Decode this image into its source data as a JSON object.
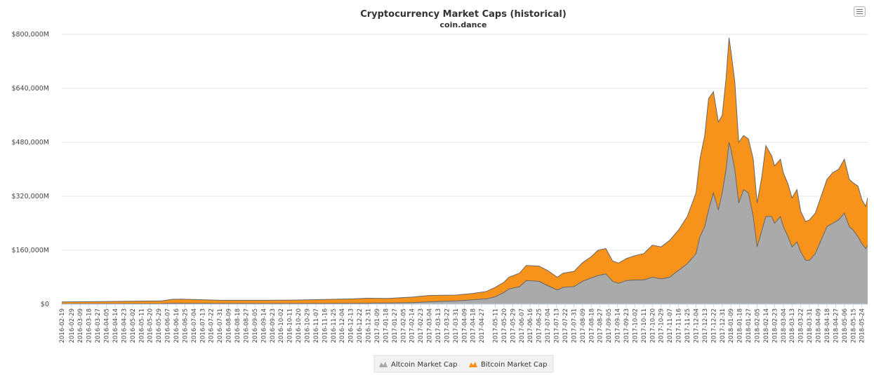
{
  "chart_data": {
    "type": "area",
    "stacked": true,
    "title": "Cryptocurrency Market Caps (historical)",
    "subtitle": "coin.dance",
    "xlabel": "",
    "ylabel": "",
    "ylim": [
      0,
      800000
    ],
    "y_ticks": [
      "$0",
      "$160,000M",
      "$320,000M",
      "$480,000M",
      "$640,000M",
      "$800,000M"
    ],
    "y_tick_values": [
      0,
      160000,
      320000,
      480000,
      640000,
      800000
    ],
    "grid": true,
    "legend_position": "bottom-center",
    "x_start": "2016-02-19",
    "x_end": "2018-05-30",
    "x_ticks": [
      "2016-02-19",
      "2016-02-29",
      "2016-03-09",
      "2016-03-18",
      "2016-03-27",
      "2016-04-05",
      "2016-04-14",
      "2016-04-23",
      "2016-05-02",
      "2016-05-11",
      "2016-05-20",
      "2016-05-29",
      "2016-06-07",
      "2016-06-16",
      "2016-06-25",
      "2016-07-04",
      "2016-07-13",
      "2016-07-22",
      "2016-07-31",
      "2016-08-09",
      "2016-08-18",
      "2016-08-27",
      "2016-09-05",
      "2016-09-14",
      "2016-09-23",
      "2016-10-02",
      "2016-10-11",
      "2016-10-20",
      "2016-10-29",
      "2016-11-07",
      "2016-11-16",
      "2016-11-25",
      "2016-12-04",
      "2016-12-13",
      "2016-12-22",
      "2016-12-31",
      "2017-01-09",
      "2017-01-18",
      "2017-01-27",
      "2017-02-05",
      "2017-02-14",
      "2017-02-23",
      "2017-03-04",
      "2017-03-13",
      "2017-03-22",
      "2017-03-31",
      "2017-04-09",
      "2017-04-18",
      "2017-04-27",
      "2017-05-11",
      "2017-05-20",
      "2017-05-29",
      "2017-06-07",
      "2017-06-16",
      "2017-06-25",
      "2017-07-04",
      "2017-07-13",
      "2017-07-22",
      "2017-07-31",
      "2017-08-09",
      "2017-08-18",
      "2017-08-27",
      "2017-09-05",
      "2017-09-14",
      "2017-09-23",
      "2017-10-02",
      "2017-10-11",
      "2017-10-20",
      "2017-10-29",
      "2017-11-07",
      "2017-11-16",
      "2017-11-25",
      "2017-12-04",
      "2017-12-13",
      "2017-12-22",
      "2017-12-31",
      "2018-01-09",
      "2018-01-18",
      "2018-01-27",
      "2018-02-05",
      "2018-02-14",
      "2018-02-23",
      "2018-03-04",
      "2018-03-13",
      "2018-03-22",
      "2018-03-31",
      "2018-04-09",
      "2018-04-18",
      "2018-04-27",
      "2018-05-06",
      "2018-05-15",
      "2018-05-24"
    ],
    "dates": [
      "2016-02-19",
      "2016-04-01",
      "2016-06-01",
      "2016-06-12",
      "2016-06-20",
      "2016-08-01",
      "2016-09-10",
      "2016-10-15",
      "2016-11-15",
      "2016-12-15",
      "2016-12-31",
      "2017-01-05",
      "2017-01-20",
      "2017-02-14",
      "2017-03-04",
      "2017-03-31",
      "2017-04-18",
      "2017-05-02",
      "2017-05-11",
      "2017-05-20",
      "2017-05-25",
      "2017-06-05",
      "2017-06-12",
      "2017-06-25",
      "2017-07-04",
      "2017-07-14",
      "2017-07-20",
      "2017-07-31",
      "2017-08-09",
      "2017-08-18",
      "2017-08-25",
      "2017-09-02",
      "2017-09-09",
      "2017-09-15",
      "2017-09-23",
      "2017-10-02",
      "2017-10-11",
      "2017-10-20",
      "2017-10-29",
      "2017-11-07",
      "2017-11-12",
      "2017-11-16",
      "2017-11-25",
      "2017-12-04",
      "2017-12-08",
      "2017-12-13",
      "2017-12-17",
      "2017-12-22",
      "2017-12-27",
      "2017-12-31",
      "2018-01-04",
      "2018-01-07",
      "2018-01-09",
      "2018-01-13",
      "2018-01-17",
      "2018-01-22",
      "2018-01-27",
      "2018-02-01",
      "2018-02-05",
      "2018-02-10",
      "2018-02-14",
      "2018-02-20",
      "2018-02-23",
      "2018-03-01",
      "2018-03-04",
      "2018-03-09",
      "2018-03-13",
      "2018-03-18",
      "2018-03-22",
      "2018-03-27",
      "2018-03-31",
      "2018-04-06",
      "2018-04-12",
      "2018-04-18",
      "2018-04-24",
      "2018-04-30",
      "2018-05-06",
      "2018-05-11",
      "2018-05-15",
      "2018-05-20",
      "2018-05-24",
      "2018-05-28",
      "2018-05-30"
    ],
    "series": [
      {
        "name": "Altcoin Market Cap",
        "color": "#aaaaaa",
        "values": [
          1000,
          1300,
          1800,
          3000,
          2500,
          2200,
          2000,
          2000,
          2200,
          2400,
          2800,
          3500,
          3500,
          4500,
          7000,
          10000,
          13000,
          16000,
          22000,
          35000,
          45000,
          52000,
          70000,
          68000,
          55000,
          42000,
          50000,
          52000,
          68000,
          78000,
          85000,
          90000,
          68000,
          62000,
          70000,
          72000,
          72000,
          80000,
          75000,
          80000,
          92000,
          100000,
          120000,
          150000,
          200000,
          230000,
          280000,
          330000,
          280000,
          330000,
          400000,
          480000,
          460000,
          400000,
          300000,
          340000,
          330000,
          260000,
          170000,
          220000,
          260000,
          260000,
          240000,
          260000,
          230000,
          200000,
          170000,
          185000,
          155000,
          130000,
          130000,
          150000,
          190000,
          230000,
          240000,
          250000,
          270000,
          230000,
          220000,
          200000,
          180000,
          165000,
          175000
        ]
      },
      {
        "name": "Bitcoin Market Cap",
        "color": "#f7931a",
        "values": [
          5800,
          6500,
          8000,
          11500,
          12500,
          9500,
          9700,
          10200,
          11800,
          13300,
          15000,
          14000,
          13500,
          16500,
          19000,
          17000,
          19000,
          22000,
          28000,
          30000,
          35000,
          40000,
          45000,
          45000,
          45000,
          38000,
          42000,
          45000,
          55000,
          63000,
          75000,
          75000,
          60000,
          60000,
          65000,
          72000,
          78000,
          95000,
          95000,
          110000,
          115000,
          120000,
          140000,
          180000,
          230000,
          270000,
          330000,
          300000,
          260000,
          230000,
          270000,
          310000,
          290000,
          260000,
          180000,
          160000,
          160000,
          170000,
          130000,
          160000,
          210000,
          180000,
          170000,
          170000,
          160000,
          155000,
          145000,
          155000,
          120000,
          115000,
          120000,
          120000,
          130000,
          140000,
          150000,
          150000,
          160000,
          140000,
          140000,
          150000,
          130000,
          125000,
          140000
        ]
      }
    ]
  }
}
